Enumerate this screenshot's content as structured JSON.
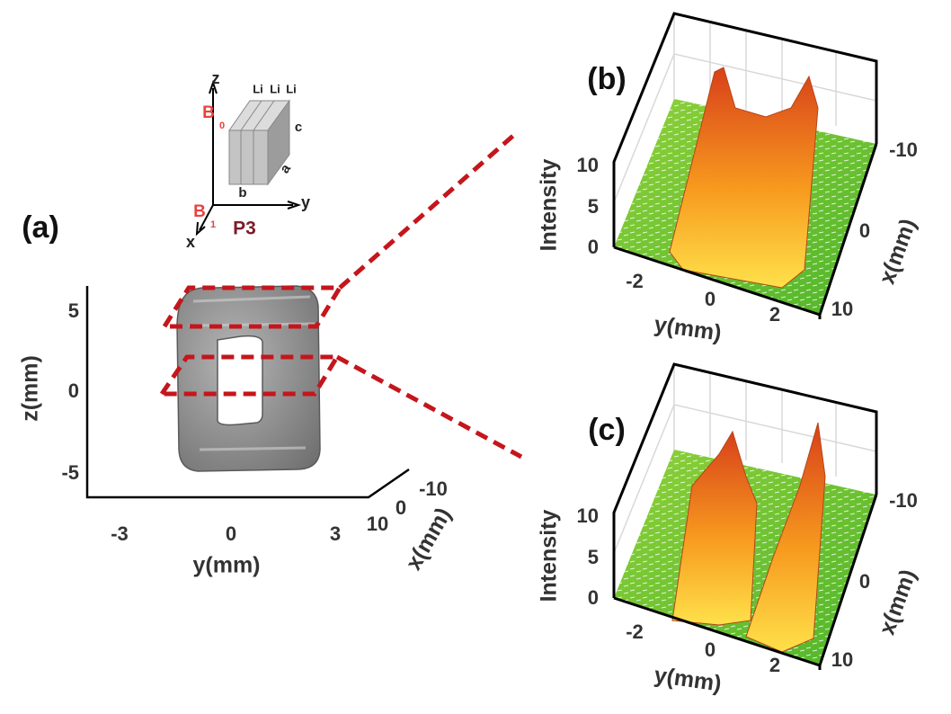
{
  "panels": [
    {
      "label": "(a)",
      "xlabel": "y(mm)",
      "ylabel": "z(mm)",
      "depth_label": "x(mm)",
      "vticks": [
        "5",
        "0",
        "-5"
      ],
      "hticks": [
        "-3",
        "0",
        "3"
      ],
      "depth_ticks": [
        "10",
        "0",
        "-10"
      ]
    },
    {
      "label": "(b)",
      "xlabel": "y(mm)",
      "depth_label": "x(mm)",
      "zlabel": "Intensity",
      "zticks": [
        "10",
        "5",
        "0"
      ],
      "hticks": [
        "-2",
        "0",
        "2"
      ],
      "depth_ticks": [
        "-10",
        "0",
        "10"
      ]
    },
    {
      "label": "(c)",
      "xlabel": "y(mm)",
      "depth_label": "x(mm)",
      "zlabel": "Intensity",
      "zticks": [
        "10",
        "5",
        "0"
      ],
      "hticks": [
        "-2",
        "0",
        "2"
      ],
      "depth_ticks": [
        "-10",
        "0",
        "10"
      ]
    }
  ],
  "inset": {
    "axes": [
      "z",
      "y",
      "x"
    ],
    "fields": [
      {
        "symbol": "B",
        "index": "0"
      },
      {
        "symbol": "B",
        "index": "1"
      }
    ],
    "layers": [
      "Li",
      "Li",
      "Li"
    ],
    "edges": [
      "a",
      "b",
      "c"
    ],
    "name": "P3"
  }
}
